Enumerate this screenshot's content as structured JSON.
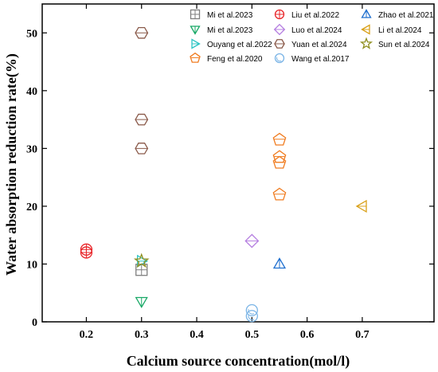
{
  "chart_data": {
    "type": "scatter",
    "xlabel": "Calcium source concentration(mol/l)",
    "ylabel": "Water absorption reduction rate(%)",
    "xlim": [
      0.12,
      0.83
    ],
    "ylim": [
      0,
      55
    ],
    "xticks": [
      "0.2",
      "0.3",
      "0.4",
      "0.5",
      "0.6",
      "0.7"
    ],
    "yticks": [
      "0",
      "10",
      "20",
      "30",
      "40",
      "50"
    ],
    "grid": false,
    "legend_placement": "top-right",
    "series": [
      {
        "name": "Mi et al.2023",
        "marker": "square-plus",
        "color": "#7f7f7f",
        "x": [
          0.3
        ],
        "y": [
          9
        ]
      },
      {
        "name": "Liu et al.2022",
        "marker": "circle-plus",
        "color": "#e8262a",
        "x": [
          0.2,
          0.2
        ],
        "y": [
          12,
          12.5
        ]
      },
      {
        "name": "Zhao et al.2021",
        "marker": "triangle-up",
        "color": "#1f6fcf",
        "x": [
          0.55
        ],
        "y": [
          10
        ]
      },
      {
        "name": "Mi et al.2023",
        "marker": "triangle-down",
        "color": "#18a866",
        "x": [
          0.3
        ],
        "y": [
          3.5
        ]
      },
      {
        "name": "Luo et al.2024",
        "marker": "diamond",
        "color": "#b57ee0",
        "x": [
          0.5
        ],
        "y": [
          14
        ]
      },
      {
        "name": "Li et al.2024",
        "marker": "triangle-left",
        "color": "#d9a017",
        "x": [
          0.7
        ],
        "y": [
          20
        ]
      },
      {
        "name": "Ouyang et al.2022",
        "marker": "triangle-right",
        "color": "#2cc4c4",
        "x": [
          0.3
        ],
        "y": [
          10.5
        ]
      },
      {
        "name": "Yuan et al.2024",
        "marker": "hexagon",
        "color": "#8a5a4a",
        "x": [
          0.3,
          0.3,
          0.3
        ],
        "y": [
          50,
          35,
          30
        ]
      },
      {
        "name": "Sun et al.2024",
        "marker": "star",
        "color": "#8f8f1e",
        "x": [
          0.3
        ],
        "y": [
          10.5
        ]
      },
      {
        "name": "Feng et al.2020",
        "marker": "pentagon",
        "color": "#f07c20",
        "x": [
          0.55,
          0.55,
          0.55,
          0.55
        ],
        "y": [
          31.5,
          28.5,
          27.5,
          22
        ]
      },
      {
        "name": "Wang et al.2017",
        "marker": "circle-arc",
        "color": "#7ab4e6",
        "x": [
          0.5,
          0.5
        ],
        "y": [
          1,
          2
        ]
      }
    ]
  }
}
